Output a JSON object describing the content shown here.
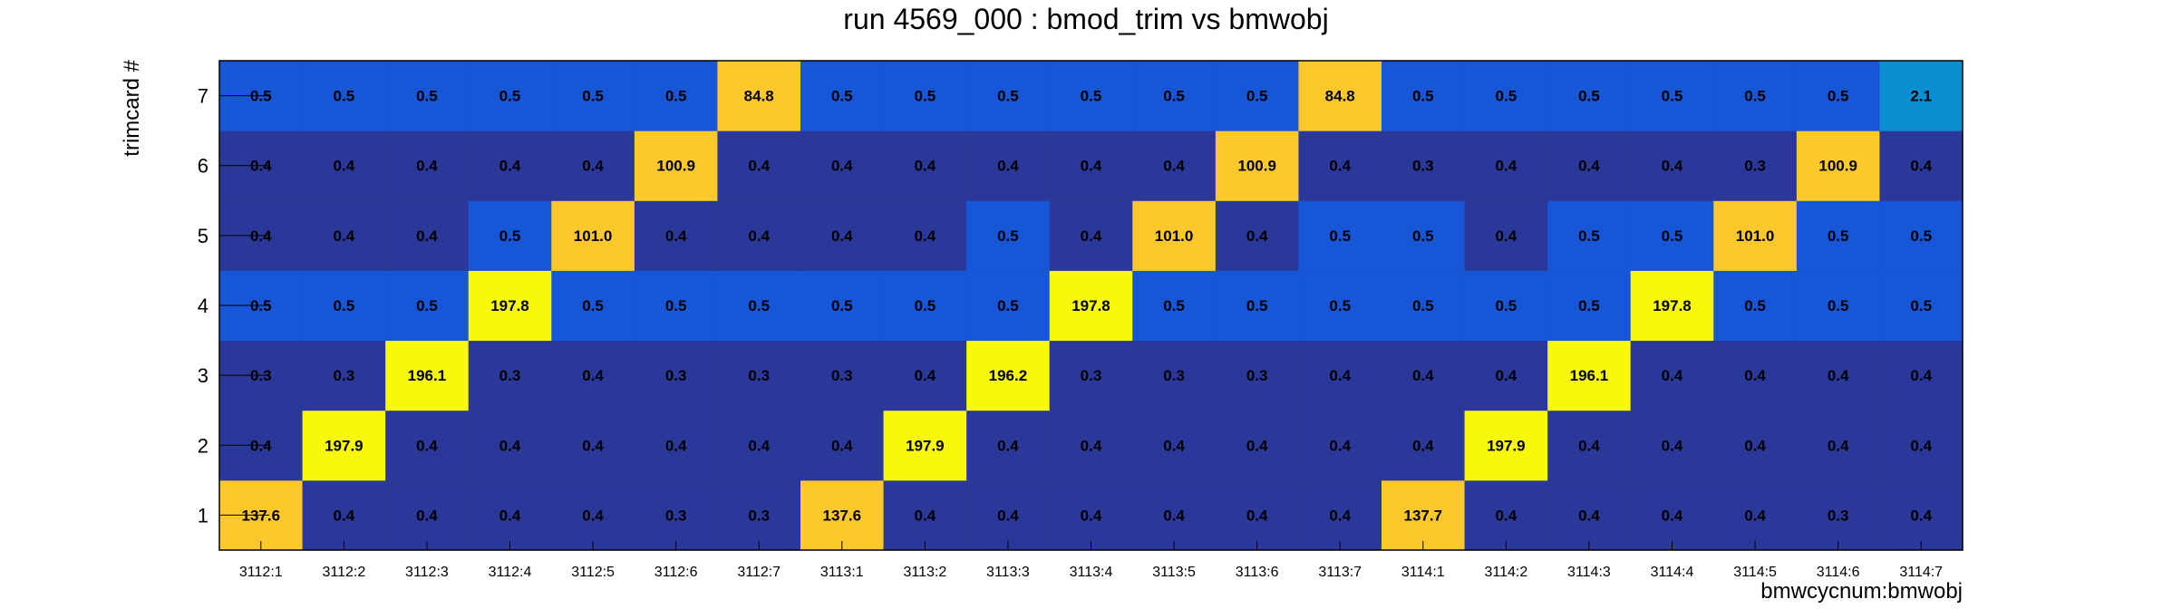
{
  "chart_data": {
    "type": "heatmap",
    "title": "run 4569_000 : bmod_trim vs bmwobj",
    "xlabel": "bmwcycnum:bmwobj",
    "ylabel": "trimcard #",
    "x_categories": [
      "3112:1",
      "3112:2",
      "3112:3",
      "3112:4",
      "3112:5",
      "3112:6",
      "3112:7",
      "3113:1",
      "3113:2",
      "3113:3",
      "3113:4",
      "3113:5",
      "3113:6",
      "3113:7",
      "3114:1",
      "3114:2",
      "3114:3",
      "3114:4",
      "3114:5",
      "3114:6",
      "3114:7"
    ],
    "y_categories": [
      "1",
      "2",
      "3",
      "4",
      "5",
      "6",
      "7"
    ],
    "values": [
      [
        137.6,
        0.4,
        0.4,
        0.4,
        0.4,
        0.3,
        0.3,
        137.6,
        0.4,
        0.4,
        0.4,
        0.4,
        0.4,
        0.4,
        137.7,
        0.4,
        0.4,
        0.4,
        0.4,
        0.3,
        0.4
      ],
      [
        0.4,
        197.9,
        0.4,
        0.4,
        0.4,
        0.4,
        0.4,
        0.4,
        197.9,
        0.4,
        0.4,
        0.4,
        0.4,
        0.4,
        0.4,
        197.9,
        0.4,
        0.4,
        0.4,
        0.4,
        0.4
      ],
      [
        0.3,
        0.3,
        196.1,
        0.3,
        0.4,
        0.3,
        0.3,
        0.3,
        0.4,
        196.2,
        0.3,
        0.3,
        0.3,
        0.4,
        0.4,
        0.4,
        196.1,
        0.4,
        0.4,
        0.4,
        0.4
      ],
      [
        0.5,
        0.5,
        0.5,
        197.8,
        0.5,
        0.5,
        0.5,
        0.5,
        0.5,
        0.5,
        197.8,
        0.5,
        0.5,
        0.5,
        0.5,
        0.5,
        0.5,
        197.8,
        0.5,
        0.5,
        0.5
      ],
      [
        0.4,
        0.4,
        0.4,
        0.5,
        101.0,
        0.4,
        0.4,
        0.4,
        0.4,
        0.5,
        0.4,
        101.0,
        0.4,
        0.5,
        0.5,
        0.4,
        0.5,
        0.5,
        101.0,
        0.5,
        0.5
      ],
      [
        0.4,
        0.4,
        0.4,
        0.4,
        0.4,
        100.9,
        0.4,
        0.4,
        0.4,
        0.4,
        0.4,
        0.4,
        100.9,
        0.4,
        0.3,
        0.4,
        0.4,
        0.4,
        0.3,
        100.9,
        0.4
      ],
      [
        0.5,
        0.5,
        0.5,
        0.5,
        0.5,
        0.5,
        84.8,
        0.5,
        0.5,
        0.5,
        0.5,
        0.5,
        0.5,
        84.8,
        0.5,
        0.5,
        0.5,
        0.5,
        0.5,
        0.5,
        2.1
      ]
    ],
    "colors": {
      "dark_blue": "#2a3899",
      "mid_blue": "#1756d6",
      "light_blue": "#0c8fd0",
      "gold": "#fdc82b",
      "yellow": "#f8f80d"
    },
    "grid": false,
    "legend": "none"
  }
}
